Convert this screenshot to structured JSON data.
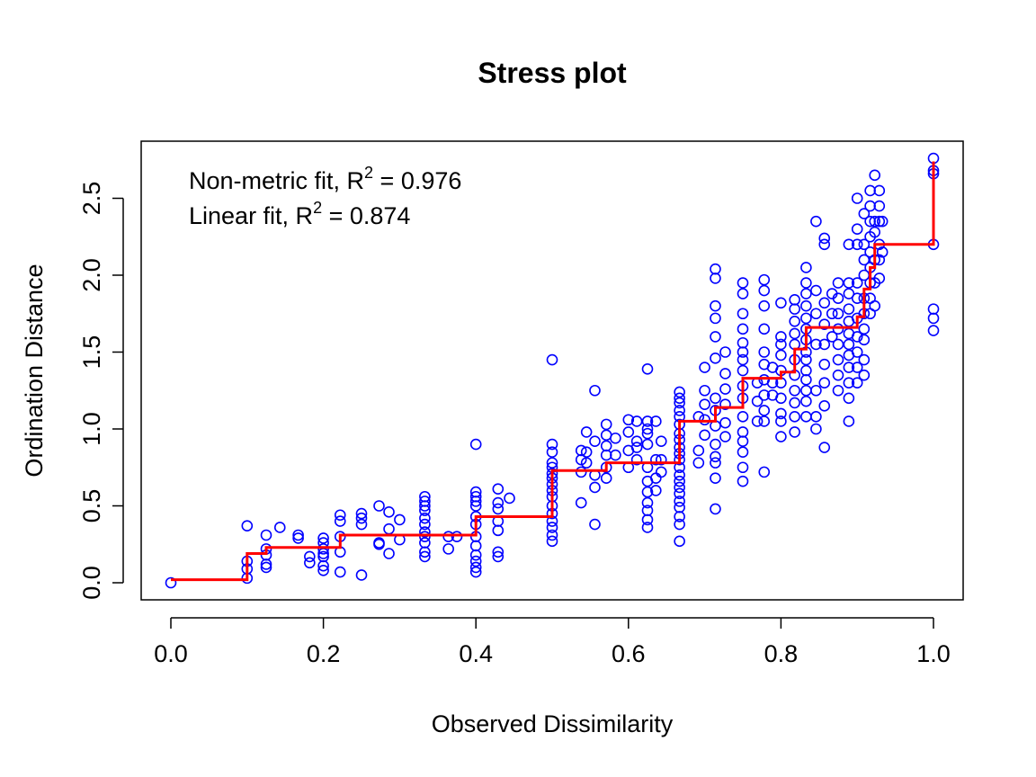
{
  "chart_data": {
    "type": "scatter",
    "title": "Stress plot",
    "xlabel": "Observed Dissimilarity",
    "ylabel": "Ordination Distance",
    "xlim": [
      0.0,
      1.0
    ],
    "ylim": [
      0.0,
      2.75
    ],
    "xticks": [
      "0.0",
      "0.2",
      "0.4",
      "0.6",
      "0.8",
      "1.0"
    ],
    "yticks": [
      "0.0",
      "0.5",
      "1.0",
      "1.5",
      "2.0",
      "2.5"
    ],
    "grid": false,
    "annotations": [
      {
        "prefix": "Non-metric fit, R",
        "sup": "2",
        "suffix": " = 0.976"
      },
      {
        "prefix": "Linear fit, R",
        "sup": "2",
        "suffix": " = 0.874"
      }
    ],
    "colors": {
      "points": "#0000ff",
      "step_line": "#ff0000"
    },
    "points": [
      [
        0.0,
        0.0
      ],
      [
        0.1,
        0.37
      ],
      [
        0.1,
        0.14
      ],
      [
        0.1,
        0.09
      ],
      [
        0.1,
        0.03
      ],
      [
        0.125,
        0.31
      ],
      [
        0.125,
        0.22
      ],
      [
        0.125,
        0.18
      ],
      [
        0.125,
        0.12
      ],
      [
        0.125,
        0.1
      ],
      [
        0.143,
        0.36
      ],
      [
        0.167,
        0.31
      ],
      [
        0.167,
        0.29
      ],
      [
        0.182,
        0.17
      ],
      [
        0.182,
        0.13
      ],
      [
        0.2,
        0.29
      ],
      [
        0.2,
        0.26
      ],
      [
        0.2,
        0.22
      ],
      [
        0.2,
        0.19
      ],
      [
        0.2,
        0.17
      ],
      [
        0.2,
        0.11
      ],
      [
        0.2,
        0.08
      ],
      [
        0.222,
        0.44
      ],
      [
        0.222,
        0.4
      ],
      [
        0.222,
        0.3
      ],
      [
        0.222,
        0.2
      ],
      [
        0.222,
        0.07
      ],
      [
        0.25,
        0.45
      ],
      [
        0.25,
        0.42
      ],
      [
        0.25,
        0.38
      ],
      [
        0.25,
        0.05
      ],
      [
        0.273,
        0.5
      ],
      [
        0.273,
        0.26
      ],
      [
        0.273,
        0.25
      ],
      [
        0.286,
        0.46
      ],
      [
        0.286,
        0.35
      ],
      [
        0.286,
        0.19
      ],
      [
        0.3,
        0.41
      ],
      [
        0.3,
        0.28
      ],
      [
        0.333,
        0.56
      ],
      [
        0.333,
        0.53
      ],
      [
        0.333,
        0.5
      ],
      [
        0.333,
        0.47
      ],
      [
        0.333,
        0.42
      ],
      [
        0.333,
        0.38
      ],
      [
        0.333,
        0.33
      ],
      [
        0.333,
        0.3
      ],
      [
        0.333,
        0.26
      ],
      [
        0.333,
        0.2
      ],
      [
        0.333,
        0.17
      ],
      [
        0.364,
        0.3
      ],
      [
        0.364,
        0.22
      ],
      [
        0.375,
        0.3
      ],
      [
        0.4,
        0.9
      ],
      [
        0.4,
        0.59
      ],
      [
        0.4,
        0.56
      ],
      [
        0.4,
        0.53
      ],
      [
        0.4,
        0.5
      ],
      [
        0.4,
        0.43
      ],
      [
        0.4,
        0.38
      ],
      [
        0.4,
        0.3
      ],
      [
        0.4,
        0.24
      ],
      [
        0.4,
        0.18
      ],
      [
        0.4,
        0.14
      ],
      [
        0.4,
        0.1
      ],
      [
        0.4,
        0.07
      ],
      [
        0.429,
        0.61
      ],
      [
        0.429,
        0.52
      ],
      [
        0.429,
        0.48
      ],
      [
        0.429,
        0.4
      ],
      [
        0.429,
        0.34
      ],
      [
        0.429,
        0.2
      ],
      [
        0.429,
        0.17
      ],
      [
        0.444,
        0.55
      ],
      [
        0.5,
        1.45
      ],
      [
        0.5,
        0.9
      ],
      [
        0.5,
        0.85
      ],
      [
        0.5,
        0.78
      ],
      [
        0.5,
        0.75
      ],
      [
        0.5,
        0.71
      ],
      [
        0.5,
        0.68
      ],
      [
        0.5,
        0.64
      ],
      [
        0.5,
        0.6
      ],
      [
        0.5,
        0.56
      ],
      [
        0.5,
        0.5
      ],
      [
        0.5,
        0.45
      ],
      [
        0.5,
        0.4
      ],
      [
        0.5,
        0.36
      ],
      [
        0.5,
        0.31
      ],
      [
        0.5,
        0.27
      ],
      [
        0.538,
        0.86
      ],
      [
        0.538,
        0.8
      ],
      [
        0.538,
        0.72
      ],
      [
        0.538,
        0.52
      ],
      [
        0.545,
        0.98
      ],
      [
        0.545,
        0.85
      ],
      [
        0.545,
        0.78
      ],
      [
        0.556,
        1.25
      ],
      [
        0.556,
        0.92
      ],
      [
        0.556,
        0.7
      ],
      [
        0.556,
        0.62
      ],
      [
        0.556,
        0.38
      ],
      [
        0.571,
        1.03
      ],
      [
        0.571,
        0.96
      ],
      [
        0.571,
        0.89
      ],
      [
        0.571,
        0.83
      ],
      [
        0.571,
        0.75
      ],
      [
        0.571,
        0.68
      ],
      [
        0.583,
        0.94
      ],
      [
        0.583,
        0.83
      ],
      [
        0.6,
        1.06
      ],
      [
        0.6,
        0.98
      ],
      [
        0.6,
        0.86
      ],
      [
        0.6,
        0.75
      ],
      [
        0.611,
        1.05
      ],
      [
        0.611,
        0.92
      ],
      [
        0.611,
        0.88
      ],
      [
        0.611,
        0.8
      ],
      [
        0.625,
        1.39
      ],
      [
        0.625,
        1.05
      ],
      [
        0.625,
        1.0
      ],
      [
        0.625,
        0.97
      ],
      [
        0.625,
        0.9
      ],
      [
        0.625,
        0.75
      ],
      [
        0.625,
        0.66
      ],
      [
        0.625,
        0.59
      ],
      [
        0.625,
        0.52
      ],
      [
        0.625,
        0.47
      ],
      [
        0.625,
        0.41
      ],
      [
        0.625,
        0.36
      ],
      [
        0.636,
        1.05
      ],
      [
        0.636,
        0.8
      ],
      [
        0.636,
        0.68
      ],
      [
        0.636,
        0.6
      ],
      [
        0.643,
        0.92
      ],
      [
        0.643,
        0.8
      ],
      [
        0.643,
        0.72
      ],
      [
        0.667,
        1.24
      ],
      [
        0.667,
        1.2
      ],
      [
        0.667,
        1.17
      ],
      [
        0.667,
        1.12
      ],
      [
        0.667,
        1.08
      ],
      [
        0.667,
        1.03
      ],
      [
        0.667,
        0.97
      ],
      [
        0.667,
        0.93
      ],
      [
        0.667,
        0.88
      ],
      [
        0.667,
        0.84
      ],
      [
        0.667,
        0.8
      ],
      [
        0.667,
        0.75
      ],
      [
        0.667,
        0.7
      ],
      [
        0.667,
        0.66
      ],
      [
        0.667,
        0.62
      ],
      [
        0.667,
        0.58
      ],
      [
        0.667,
        0.53
      ],
      [
        0.667,
        0.49
      ],
      [
        0.667,
        0.43
      ],
      [
        0.667,
        0.38
      ],
      [
        0.667,
        0.27
      ],
      [
        0.692,
        1.08
      ],
      [
        0.692,
        0.86
      ],
      [
        0.692,
        0.78
      ],
      [
        0.7,
        1.4
      ],
      [
        0.7,
        1.25
      ],
      [
        0.7,
        1.16
      ],
      [
        0.7,
        1.06
      ],
      [
        0.7,
        0.96
      ],
      [
        0.714,
        2.04
      ],
      [
        0.714,
        1.98
      ],
      [
        0.714,
        1.8
      ],
      [
        0.714,
        1.72
      ],
      [
        0.714,
        1.6
      ],
      [
        0.714,
        1.46
      ],
      [
        0.714,
        1.2
      ],
      [
        0.714,
        1.12
      ],
      [
        0.714,
        1.02
      ],
      [
        0.714,
        0.9
      ],
      [
        0.714,
        0.82
      ],
      [
        0.714,
        0.78
      ],
      [
        0.714,
        0.68
      ],
      [
        0.714,
        0.48
      ],
      [
        0.727,
        1.5
      ],
      [
        0.727,
        1.36
      ],
      [
        0.727,
        1.26
      ],
      [
        0.727,
        1.16
      ],
      [
        0.727,
        1.04
      ],
      [
        0.727,
        0.95
      ],
      [
        0.75,
        1.95
      ],
      [
        0.75,
        1.88
      ],
      [
        0.75,
        1.75
      ],
      [
        0.75,
        1.65
      ],
      [
        0.75,
        1.56
      ],
      [
        0.75,
        1.5
      ],
      [
        0.75,
        1.45
      ],
      [
        0.75,
        1.38
      ],
      [
        0.75,
        1.28
      ],
      [
        0.75,
        1.2
      ],
      [
        0.75,
        1.08
      ],
      [
        0.75,
        0.98
      ],
      [
        0.75,
        0.92
      ],
      [
        0.75,
        0.85
      ],
      [
        0.75,
        0.75
      ],
      [
        0.75,
        0.66
      ],
      [
        0.769,
        1.3
      ],
      [
        0.769,
        1.18
      ],
      [
        0.769,
        1.05
      ],
      [
        0.778,
        1.97
      ],
      [
        0.778,
        1.9
      ],
      [
        0.778,
        1.8
      ],
      [
        0.778,
        1.65
      ],
      [
        0.778,
        1.5
      ],
      [
        0.778,
        1.42
      ],
      [
        0.778,
        1.32
      ],
      [
        0.778,
        1.22
      ],
      [
        0.778,
        1.12
      ],
      [
        0.778,
        1.05
      ],
      [
        0.778,
        0.72
      ],
      [
        0.789,
        1.4
      ],
      [
        0.789,
        1.3
      ],
      [
        0.789,
        1.22
      ],
      [
        0.8,
        1.82
      ],
      [
        0.8,
        1.6
      ],
      [
        0.8,
        1.55
      ],
      [
        0.8,
        1.48
      ],
      [
        0.8,
        1.38
      ],
      [
        0.8,
        1.3
      ],
      [
        0.8,
        1.2
      ],
      [
        0.8,
        1.1
      ],
      [
        0.8,
        1.05
      ],
      [
        0.8,
        0.95
      ],
      [
        0.818,
        1.84
      ],
      [
        0.818,
        1.78
      ],
      [
        0.818,
        1.7
      ],
      [
        0.818,
        1.62
      ],
      [
        0.818,
        1.55
      ],
      [
        0.818,
        1.45
      ],
      [
        0.818,
        1.35
      ],
      [
        0.818,
        1.25
      ],
      [
        0.818,
        1.17
      ],
      [
        0.818,
        1.08
      ],
      [
        0.818,
        0.98
      ],
      [
        0.833,
        2.05
      ],
      [
        0.833,
        1.95
      ],
      [
        0.833,
        1.88
      ],
      [
        0.833,
        1.8
      ],
      [
        0.833,
        1.72
      ],
      [
        0.833,
        1.65
      ],
      [
        0.833,
        1.58
      ],
      [
        0.833,
        1.5
      ],
      [
        0.833,
        1.45
      ],
      [
        0.833,
        1.38
      ],
      [
        0.833,
        1.32
      ],
      [
        0.833,
        1.25
      ],
      [
        0.833,
        1.18
      ],
      [
        0.833,
        1.08
      ],
      [
        0.846,
        2.35
      ],
      [
        0.846,
        1.9
      ],
      [
        0.846,
        1.75
      ],
      [
        0.846,
        1.55
      ],
      [
        0.846,
        1.25
      ],
      [
        0.846,
        1.08
      ],
      [
        0.846,
        1.0
      ],
      [
        0.857,
        2.24
      ],
      [
        0.857,
        2.2
      ],
      [
        0.857,
        1.82
      ],
      [
        0.857,
        1.68
      ],
      [
        0.857,
        1.55
      ],
      [
        0.857,
        1.42
      ],
      [
        0.857,
        1.3
      ],
      [
        0.857,
        1.15
      ],
      [
        0.857,
        0.88
      ],
      [
        0.867,
        1.88
      ],
      [
        0.867,
        1.75
      ],
      [
        0.867,
        1.6
      ],
      [
        0.875,
        1.95
      ],
      [
        0.875,
        1.85
      ],
      [
        0.875,
        1.75
      ],
      [
        0.875,
        1.65
      ],
      [
        0.875,
        1.55
      ],
      [
        0.875,
        1.45
      ],
      [
        0.875,
        1.35
      ],
      [
        0.875,
        1.25
      ],
      [
        0.889,
        2.2
      ],
      [
        0.889,
        1.95
      ],
      [
        0.889,
        1.88
      ],
      [
        0.889,
        1.78
      ],
      [
        0.889,
        1.7
      ],
      [
        0.889,
        1.62
      ],
      [
        0.889,
        1.55
      ],
      [
        0.889,
        1.48
      ],
      [
        0.889,
        1.4
      ],
      [
        0.889,
        1.3
      ],
      [
        0.889,
        1.2
      ],
      [
        0.889,
        1.05
      ],
      [
        0.9,
        2.5
      ],
      [
        0.9,
        2.3
      ],
      [
        0.9,
        2.2
      ],
      [
        0.9,
        1.95
      ],
      [
        0.9,
        1.85
      ],
      [
        0.9,
        1.72
      ],
      [
        0.9,
        1.6
      ],
      [
        0.9,
        1.5
      ],
      [
        0.9,
        1.4
      ],
      [
        0.9,
        1.3
      ],
      [
        0.909,
        2.4
      ],
      [
        0.909,
        2.2
      ],
      [
        0.909,
        2.1
      ],
      [
        0.909,
        2.0
      ],
      [
        0.909,
        1.85
      ],
      [
        0.909,
        1.75
      ],
      [
        0.909,
        1.65
      ],
      [
        0.909,
        1.58
      ],
      [
        0.909,
        1.45
      ],
      [
        0.909,
        1.35
      ],
      [
        0.917,
        2.55
      ],
      [
        0.917,
        2.45
      ],
      [
        0.917,
        2.35
      ],
      [
        0.917,
        2.25
      ],
      [
        0.917,
        2.15
      ],
      [
        0.917,
        2.05
      ],
      [
        0.917,
        1.95
      ],
      [
        0.917,
        1.85
      ],
      [
        0.917,
        1.75
      ],
      [
        0.923,
        2.65
      ],
      [
        0.923,
        2.35
      ],
      [
        0.923,
        2.28
      ],
      [
        0.923,
        2.1
      ],
      [
        0.923,
        1.95
      ],
      [
        0.923,
        1.8
      ],
      [
        0.929,
        2.55
      ],
      [
        0.929,
        2.45
      ],
      [
        0.929,
        2.35
      ],
      [
        0.929,
        2.2
      ],
      [
        0.929,
        2.1
      ],
      [
        0.929,
        1.98
      ],
      [
        0.933,
        2.35
      ],
      [
        0.933,
        2.15
      ],
      [
        1.0,
        2.76
      ],
      [
        1.0,
        2.68
      ],
      [
        1.0,
        2.66
      ],
      [
        1.0,
        2.2
      ],
      [
        1.0,
        1.78
      ],
      [
        1.0,
        1.72
      ],
      [
        1.0,
        1.64
      ]
    ],
    "step_line": [
      [
        0.0,
        0.02
      ],
      [
        0.1,
        0.02
      ],
      [
        0.1,
        0.19
      ],
      [
        0.125,
        0.19
      ],
      [
        0.125,
        0.23
      ],
      [
        0.222,
        0.23
      ],
      [
        0.222,
        0.31
      ],
      [
        0.4,
        0.31
      ],
      [
        0.4,
        0.43
      ],
      [
        0.5,
        0.43
      ],
      [
        0.5,
        0.73
      ],
      [
        0.571,
        0.73
      ],
      [
        0.571,
        0.78
      ],
      [
        0.667,
        0.78
      ],
      [
        0.667,
        1.05
      ],
      [
        0.714,
        1.05
      ],
      [
        0.714,
        1.14
      ],
      [
        0.75,
        1.14
      ],
      [
        0.75,
        1.33
      ],
      [
        0.8,
        1.33
      ],
      [
        0.8,
        1.37
      ],
      [
        0.818,
        1.37
      ],
      [
        0.818,
        1.52
      ],
      [
        0.833,
        1.52
      ],
      [
        0.833,
        1.66
      ],
      [
        0.9,
        1.66
      ],
      [
        0.9,
        1.73
      ],
      [
        0.909,
        1.73
      ],
      [
        0.909,
        1.91
      ],
      [
        0.917,
        1.91
      ],
      [
        0.917,
        2.05
      ],
      [
        0.923,
        2.05
      ],
      [
        0.923,
        2.2
      ],
      [
        1.0,
        2.2
      ],
      [
        1.0,
        2.74
      ]
    ]
  }
}
